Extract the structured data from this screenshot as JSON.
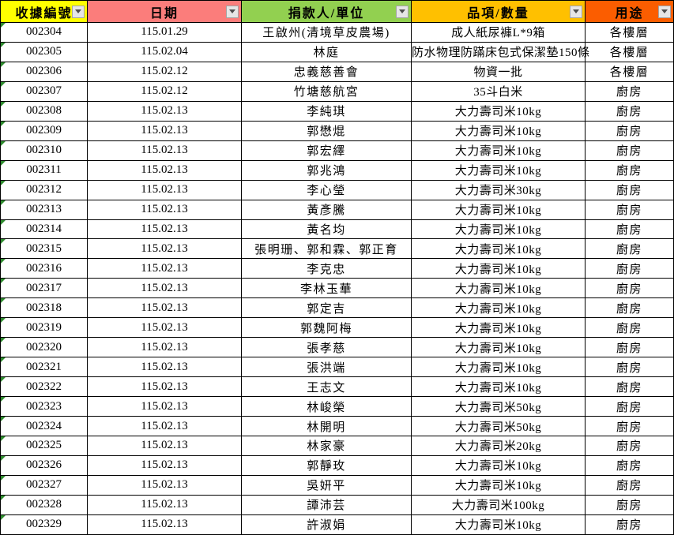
{
  "table": {
    "columns": [
      {
        "label": "收據編號",
        "color": "#FFFF00"
      },
      {
        "label": "日期",
        "color": "#FB7D7B"
      },
      {
        "label": "捐款人/單位",
        "color": "#92D050"
      },
      {
        "label": "品項/數量",
        "color": "#FFC000"
      },
      {
        "label": "用途",
        "color": "#FB5D00"
      }
    ],
    "filter_icon": "filter-dropdown-icon",
    "error_indicator_color": "#2E8B2E",
    "rows": [
      [
        "002304",
        "115.01.29",
        "王啟州(清境草皮農場)",
        "成人紙尿褲L*9箱",
        "各樓層"
      ],
      [
        "002305",
        "115.02.04",
        "林庭",
        "防水物理防蹣床包式保潔墊150條",
        "各樓層"
      ],
      [
        "002306",
        "115.02.12",
        "忠義慈善會",
        "物資一批",
        "各樓層"
      ],
      [
        "002307",
        "115.02.12",
        "竹塘慈航宮",
        "35斗白米",
        "廚房"
      ],
      [
        "002308",
        "115.02.13",
        "李純琪",
        "大力壽司米10kg",
        "廚房"
      ],
      [
        "002309",
        "115.02.13",
        "郭懋焜",
        "大力壽司米10kg",
        "廚房"
      ],
      [
        "002310",
        "115.02.13",
        "郭宏繹",
        "大力壽司米10kg",
        "廚房"
      ],
      [
        "002311",
        "115.02.13",
        "郭兆鴻",
        "大力壽司米10kg",
        "廚房"
      ],
      [
        "002312",
        "115.02.13",
        "李心瑩",
        "大力壽司米30kg",
        "廚房"
      ],
      [
        "002313",
        "115.02.13",
        "黃彥騰",
        "大力壽司米10kg",
        "廚房"
      ],
      [
        "002314",
        "115.02.13",
        "黃名均",
        "大力壽司米10kg",
        "廚房"
      ],
      [
        "002315",
        "115.02.13",
        "張明珊、郭和霖、郭正育",
        "大力壽司米10kg",
        "廚房"
      ],
      [
        "002316",
        "115.02.13",
        "李克忠",
        "大力壽司米10kg",
        "廚房"
      ],
      [
        "002317",
        "115.02.13",
        "李林玉華",
        "大力壽司米10kg",
        "廚房"
      ],
      [
        "002318",
        "115.02.13",
        "郭定吉",
        "大力壽司米10kg",
        "廚房"
      ],
      [
        "002319",
        "115.02.13",
        "郭魏阿梅",
        "大力壽司米10kg",
        "廚房"
      ],
      [
        "002320",
        "115.02.13",
        "張孝慈",
        "大力壽司米10kg",
        "廚房"
      ],
      [
        "002321",
        "115.02.13",
        "張洪端",
        "大力壽司米10kg",
        "廚房"
      ],
      [
        "002322",
        "115.02.13",
        "王志文",
        "大力壽司米10kg",
        "廚房"
      ],
      [
        "002323",
        "115.02.13",
        "林峻榮",
        "大力壽司米50kg",
        "廚房"
      ],
      [
        "002324",
        "115.02.13",
        "林開明",
        "大力壽司米50kg",
        "廚房"
      ],
      [
        "002325",
        "115.02.13",
        "林家豪",
        "大力壽司米20kg",
        "廚房"
      ],
      [
        "002326",
        "115.02.13",
        "郭靜玫",
        "大力壽司米10kg",
        "廚房"
      ],
      [
        "002327",
        "115.02.13",
        "吳妍平",
        "大力壽司米10kg",
        "廚房"
      ],
      [
        "002328",
        "115.02.13",
        "譚沛芸",
        "大力壽司米100kg",
        "廚房"
      ],
      [
        "002329",
        "115.02.13",
        "許淑娟",
        "大力壽司米10kg",
        "廚房"
      ]
    ]
  }
}
